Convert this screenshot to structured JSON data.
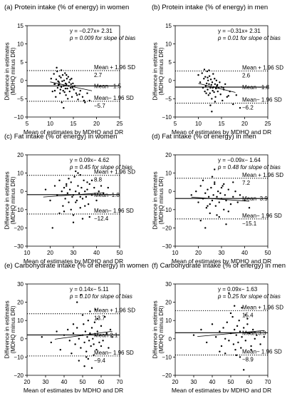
{
  "chart_data": [
    {
      "type": "scatter",
      "title": "(a) Protein intake (% of energy) in women",
      "xlabel": "Mean of estimates by MDHQ and DR",
      "ylabel": "Difference in estimates (MDHQ minus DR)",
      "xlim": [
        5,
        25
      ],
      "ylim": [
        -10,
        15
      ],
      "xticks": [
        5,
        10,
        15,
        20,
        25
      ],
      "yticks": [
        -10,
        -5,
        0,
        5,
        10,
        15
      ],
      "equation": "y = −0.27x+ 2.31",
      "pvalue": "p = 0.009 for slope of bias",
      "mean": -1.5,
      "upper": 2.7,
      "lower": -5.7,
      "mean_label": "Mean −1.5",
      "upper_label": "Mean + 1.96 SD",
      "upper_value": "2.7",
      "lower_label": "Mean− 1.96 SD",
      "lower_value": "−5.7",
      "regression": {
        "slope": -0.27,
        "intercept": 2.31,
        "x_range": [
          10,
          19
        ]
      },
      "points": {
        "x": [
          10.2,
          10.5,
          10.8,
          11.0,
          11.2,
          11.3,
          11.5,
          11.6,
          11.8,
          11.9,
          12.0,
          12.1,
          12.2,
          12.3,
          12.4,
          12.5,
          12.6,
          12.7,
          12.8,
          12.9,
          13.0,
          13.1,
          13.2,
          13.3,
          13.4,
          13.5,
          13.6,
          13.7,
          13.8,
          13.9,
          14.0,
          14.1,
          14.2,
          14.3,
          14.4,
          14.5,
          14.7,
          14.9,
          15.1,
          15.3,
          15.6,
          16.0,
          16.5,
          17.0,
          17.5,
          18.0,
          18.5,
          11.4,
          12.9,
          13.5,
          14.8,
          10.9,
          12.4,
          11.7,
          13.3,
          14.6,
          15.8,
          12.0,
          16.3,
          17.3,
          11.0
        ],
        "y": [
          0.5,
          -3.0,
          1.8,
          -1.0,
          -4.5,
          0.3,
          2.5,
          -2.0,
          -1.2,
          -0.5,
          1.2,
          -3.5,
          -2.5,
          0.8,
          -1.8,
          -6.0,
          -0.2,
          1.5,
          -2.8,
          -1.5,
          0.0,
          -3.2,
          2.0,
          -0.8,
          -4.0,
          -1.0,
          0.5,
          -2.2,
          -5.0,
          1.0,
          -1.5,
          -0.5,
          -3.0,
          0.2,
          -2.0,
          -1.0,
          -4.5,
          -0.8,
          -2.5,
          -1.5,
          -3.5,
          -5.2,
          -2.8,
          -4.5,
          -6.0,
          -3.5,
          -5.5,
          3.5,
          -7.5,
          1.5,
          -2.0,
          -1.0,
          2.8,
          -0.2,
          -2.2,
          0.5,
          -4.0,
          -1.0,
          -3.8,
          -5.5,
          -2.8
        ]
      }
    },
    {
      "type": "scatter",
      "title": "(b) Protein intake (% of energy) in men",
      "xlabel": "Mean of estimates by MDHQ and DR",
      "ylabel": "Difference in estimates (MDHQ minus DR)",
      "xlim": [
        5,
        25
      ],
      "ylim": [
        -10,
        15
      ],
      "xticks": [
        5,
        10,
        15,
        20,
        25
      ],
      "yticks": [
        -10,
        -5,
        0,
        5,
        10,
        15
      ],
      "equation": "y = −0.31x+ 2.31",
      "pvalue": "p = 0.01 for slope of bias",
      "mean": -1.8,
      "upper": 2.6,
      "lower": -6.2,
      "mean_label": "Mean −1.8",
      "upper_label": "Mean + 1.96 SD",
      "upper_value": "2.6",
      "lower_label": "Mean− 1.96 SD",
      "lower_value": "−6.2",
      "regression": {
        "slope": -0.31,
        "intercept": 2.31,
        "x_range": [
          10,
          18
        ]
      },
      "points": {
        "x": [
          10.0,
          10.4,
          10.8,
          11.0,
          11.2,
          11.4,
          11.5,
          11.6,
          11.8,
          11.9,
          12.0,
          12.1,
          12.2,
          12.3,
          12.4,
          12.5,
          12.6,
          12.7,
          12.8,
          12.9,
          13.0,
          13.1,
          13.2,
          13.3,
          13.4,
          13.5,
          13.6,
          13.7,
          13.8,
          13.9,
          14.0,
          14.2,
          14.4,
          14.6,
          14.8,
          15.0,
          15.2,
          15.5,
          15.8,
          16.2,
          16.8,
          17.5,
          18.2,
          19.0,
          11.3,
          12.6,
          13.1,
          14.1,
          12.0,
          13.6,
          11.7,
          12.9,
          15.4,
          16.5,
          12.3
        ],
        "y": [
          1.5,
          -0.5,
          2.0,
          -2.0,
          0.5,
          -3.0,
          1.0,
          -1.5,
          -0.8,
          2.5,
          -2.5,
          0.0,
          -4.0,
          -1.0,
          1.2,
          -3.5,
          -2.0,
          0.3,
          -1.2,
          -5.0,
          -0.5,
          -2.8,
          1.8,
          -1.8,
          -3.2,
          0.5,
          -1.0,
          -4.5,
          -2.2,
          0.0,
          -1.5,
          -3.0,
          -2.0,
          -0.5,
          -3.8,
          -1.8,
          -5.5,
          -2.5,
          -1.0,
          -4.5,
          -3.0,
          -6.5,
          -4.0,
          -7.5,
          3.0,
          -6.8,
          -2.0,
          -1.2,
          0.8,
          -5.8,
          -3.5,
          -8.5,
          -2.0,
          -4.2,
          2.8
        ]
      }
    },
    {
      "type": "scatter",
      "title": "(c) Fat intake (% of energy) in women",
      "xlabel": "Mean of estimates by MDHQ and DR",
      "ylabel": "Difference in estimates (MDHQ minus DR)",
      "xlim": [
        10,
        50
      ],
      "ylim": [
        -30,
        20
      ],
      "xticks": [
        10,
        20,
        30,
        40,
        50
      ],
      "yticks": [
        -30,
        -20,
        -10,
        0,
        10,
        20
      ],
      "equation": "y = 0.09x− 4.62",
      "pvalue": "p = 0.45 for slope of bias",
      "mean": -1.8,
      "upper": 8.8,
      "lower": -12.4,
      "mean_label": "Mean−1.8",
      "upper_label": "Mean + 1.96 SD",
      "upper_value": "8.8",
      "lower_label": "Mean− 1.96 SD",
      "lower_value": "−12.4",
      "regression": {
        "slope": 0.09,
        "intercept": -4.62,
        "x_range": [
          17,
          43
        ]
      },
      "points": {
        "x": [
          18,
          20,
          22,
          23,
          24,
          25,
          25.5,
          26,
          26.5,
          27,
          27.5,
          28,
          28.5,
          29,
          29.5,
          30,
          30.5,
          31,
          31.5,
          32,
          32.5,
          33,
          33.5,
          34,
          34.5,
          35,
          35.5,
          36,
          36.5,
          37,
          38,
          39,
          40,
          41,
          42,
          43,
          26,
          28,
          30,
          32,
          34,
          36,
          29,
          31,
          33,
          35,
          27,
          30,
          33,
          38,
          24,
          45,
          21,
          37,
          31
        ],
        "y": [
          1,
          -5,
          3,
          -2,
          6,
          0,
          -8,
          2,
          -4,
          4,
          -1,
          -6,
          1,
          5,
          -3,
          -2,
          8,
          0,
          -5,
          3,
          -1,
          -9,
          2,
          -4,
          6,
          0,
          -3,
          1,
          -7,
          4,
          -2,
          2,
          -5,
          0,
          3,
          -1,
          -11,
          7,
          -13,
          10,
          -15,
          5,
          -10,
          -6,
          9,
          -8,
          3,
          -17,
          -3,
          6,
          -12,
          2,
          -20,
          -14,
          11
        ]
      }
    },
    {
      "type": "scatter",
      "title": "(d) Fat intake (% of energy) in men",
      "xlabel": "Mean of estimates by MDHQ and DR",
      "ylabel": "Difference in estimates (MDHQ minus DR)",
      "xlim": [
        10,
        50
      ],
      "ylim": [
        -30,
        20
      ],
      "xticks": [
        10,
        20,
        30,
        40,
        50
      ],
      "yticks": [
        -30,
        -20,
        -10,
        0,
        10,
        20
      ],
      "equation": "y = −0.09x− 1.64",
      "pvalue": "p = 0.48 for slope of bias",
      "mean": -3.9,
      "upper": 7.2,
      "lower": -15.1,
      "mean_label": "Mean−3.9",
      "upper_label": "Mean + 1.96 SD",
      "upper_value": "7.2",
      "lower_label": "Mean− 1.96 SD",
      "lower_value": "−15.1",
      "regression": {
        "slope": -0.09,
        "intercept": -1.64,
        "x_range": [
          17,
          42
        ]
      },
      "points": {
        "x": [
          17,
          19,
          20,
          21,
          22,
          23,
          23.5,
          24,
          24.5,
          25,
          25.5,
          26,
          26.5,
          27,
          27.5,
          28,
          28.5,
          29,
          29.5,
          30,
          30.5,
          31,
          31.5,
          32,
          33,
          34,
          35,
          36,
          37,
          38,
          40,
          42,
          22,
          25,
          27,
          29,
          31,
          33,
          26,
          28,
          24,
          30,
          21,
          35,
          27,
          23,
          32
        ],
        "y": [
          -2,
          0,
          -6,
          3,
          -4,
          -1,
          -9,
          1,
          -3,
          -7,
          2,
          -5,
          -2,
          4,
          -8,
          -3,
          0,
          -6,
          -1,
          -4,
          3,
          -10,
          -2,
          -5,
          1,
          -7,
          -3,
          0,
          -6,
          -2,
          -5,
          -9,
          6,
          -12,
          5,
          -14,
          4,
          -11,
          8,
          -13,
          -8,
          2,
          -16,
          5,
          12,
          -20,
          -18
        ]
      }
    },
    {
      "type": "scatter",
      "title": "(e) Carbohydrate intake (% of energy) in women",
      "xlabel": "Mean of estimates by MDHQ and DR",
      "ylabel": "Difference in estimates (MDHQ minus DR)",
      "xlim": [
        20,
        70
      ],
      "ylim": [
        -20,
        30
      ],
      "xticks": [
        20,
        30,
        40,
        50,
        60,
        70
      ],
      "yticks": [
        -20,
        -10,
        0,
        10,
        20,
        30
      ],
      "equation": "y = 0.14x− 5.11",
      "pvalue": "p = 0.10 for slope of bias",
      "mean": 2.1,
      "upper": 13.7,
      "lower": -9.4,
      "mean_label": "Mean 2.1",
      "upper_label": "Mean + 1.96 SD",
      "upper_value": "13.7",
      "lower_label": "Mean− 1.96 SD",
      "lower_value": "−9.4",
      "regression": {
        "slope": 0.14,
        "intercept": -5.11,
        "x_range": [
          35,
          66
        ]
      },
      "points": {
        "x": [
          28,
          33,
          36,
          38,
          40,
          42,
          43,
          44,
          45,
          46,
          47,
          48,
          49,
          50,
          50.5,
          51,
          51.5,
          52,
          52.5,
          53,
          53.5,
          54,
          54.5,
          55,
          55.5,
          56,
          56.5,
          57,
          57.5,
          58,
          59,
          60,
          61,
          62,
          63,
          64,
          65,
          66,
          48,
          50,
          52,
          54,
          56,
          58,
          45,
          49,
          53,
          57,
          60,
          47,
          55,
          51
        ],
        "y": [
          1,
          -2,
          4,
          -6,
          2,
          5,
          -1,
          -8,
          3,
          -3,
          6,
          0,
          -5,
          2,
          8,
          -2,
          4,
          -7,
          1,
          10,
          -1,
          3,
          -4,
          6,
          0,
          -3,
          9,
          2,
          -6,
          4,
          -2,
          7,
          -1,
          12,
          3,
          -5,
          5,
          1,
          -12,
          13,
          -10,
          15,
          -9,
          11,
          8,
          24,
          -11,
          16,
          -4,
          20,
          -16,
          -15
        ]
      }
    },
    {
      "type": "scatter",
      "title": "(f) Carbohydrate intake (% of energy) in men",
      "xlabel": "Mean of estimates by MDHQ and DR",
      "ylabel": "Difference in estimates (MDHQ minus DR)",
      "xlim": [
        20,
        70
      ],
      "ylim": [
        -20,
        30
      ],
      "xticks": [
        20,
        30,
        40,
        50,
        60,
        70
      ],
      "yticks": [
        -20,
        -10,
        0,
        10,
        20,
        30
      ],
      "equation": "y = 0.09x− 1.63",
      "pvalue": "p = 0.25 for slope of bias",
      "mean": 3.3,
      "upper": 15.4,
      "lower": -8.9,
      "mean_label": "Mean 3.3",
      "upper_label": "Mean + 1.96 SD",
      "upper_value": "15.4",
      "lower_label": "Mean− 1.96 SD",
      "lower_value": "−8.9",
      "regression": {
        "slope": 0.09,
        "intercept": -1.63,
        "x_range": [
          32,
          68
        ]
      },
      "points": {
        "x": [
          30,
          34,
          37,
          40,
          42,
          44,
          45,
          46,
          47,
          48,
          49,
          50,
          51,
          51.5,
          52,
          52.5,
          53,
          53.5,
          54,
          54.5,
          55,
          55.5,
          56,
          57,
          58,
          59,
          60,
          61,
          62,
          63,
          64,
          66,
          68,
          47,
          50,
          53,
          56,
          59,
          44,
          52,
          55,
          58,
          61,
          49,
          57
        ],
        "y": [
          2,
          5,
          -2,
          8,
          1,
          4,
          -4,
          6,
          0,
          9,
          -1,
          3,
          12,
          -3,
          5,
          -6,
          2,
          7,
          -2,
          10,
          4,
          -5,
          1,
          6,
          -1,
          8,
          3,
          -4,
          5,
          0,
          2,
          -3,
          1,
          -8,
          14,
          -9,
          17,
          11,
          -7,
          18,
          -10,
          13,
          -6,
          25,
          -17
        ]
      }
    }
  ]
}
